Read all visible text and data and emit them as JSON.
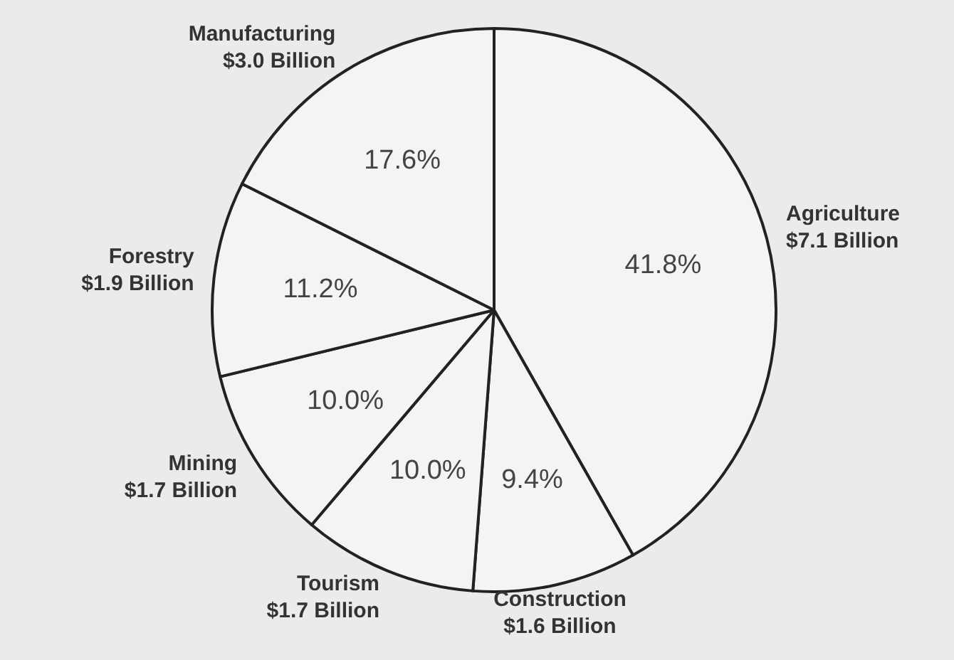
{
  "chart_data": {
    "type": "pie",
    "categories": [
      "Agriculture\n$7.1 Billion",
      "Construction\n$1.6 Billion",
      "Tourism\n$1.7 Billion",
      "Mining\n$1.7 Billion",
      "Forestry\n$1.9 Billion",
      "Manufacturing\n$3.0 Billion"
    ],
    "values": [
      41.8,
      9.4,
      10.0,
      10.0,
      11.2,
      17.6
    ],
    "value_labels": [
      "41.8%",
      "9.4%",
      "10.0%",
      "10.0%",
      "11.2%",
      "17.6%"
    ],
    "colors": [
      "#f4f4f4",
      "#f4f4f4",
      "#f4f4f4",
      "#f4f4f4",
      "#f4f4f4",
      "#f4f4f4"
    ]
  }
}
